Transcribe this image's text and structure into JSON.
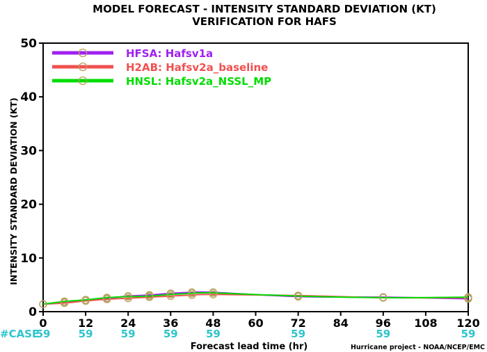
{
  "chart_data": {
    "type": "line",
    "title": "MODEL FORECAST - INTENSITY STANDARD DEVIATION (KT)",
    "subtitle": "VERIFICATION FOR HAFS",
    "xlabel": "Forecast lead time (hr)",
    "ylabel": "INTENSITY STANDARD DEVIATION (KT)",
    "credit": "Hurricane project - NOAA/NCEP/EMC",
    "xlim": [
      0,
      120
    ],
    "ylim": [
      0,
      50
    ],
    "x_ticks": [
      0,
      12,
      24,
      36,
      48,
      60,
      72,
      84,
      96,
      108,
      120
    ],
    "y_ticks": [
      0,
      10,
      20,
      30,
      40,
      50
    ],
    "grid": false,
    "legend_position": "top-left",
    "case_label": "#CASE",
    "case_ticks": [
      0,
      12,
      24,
      36,
      48,
      72,
      96,
      120
    ],
    "case_counts": [
      "59",
      "59",
      "59",
      "59",
      "59",
      "59",
      "59",
      "59"
    ],
    "series": [
      {
        "name": "HFSA: Hafsv1a",
        "color": "#a020f0",
        "x": [
          0,
          6,
          12,
          18,
          24,
          30,
          36,
          42,
          48,
          72,
          96,
          120
        ],
        "values": [
          1.4,
          1.8,
          2.2,
          2.5,
          2.9,
          3.1,
          3.4,
          3.6,
          3.6,
          2.8,
          2.7,
          2.4
        ]
      },
      {
        "name": "H2AB: Hafsv2a_baseline",
        "color": "#f0504f",
        "x": [
          0,
          6,
          12,
          18,
          24,
          30,
          36,
          42,
          48,
          72,
          96,
          120
        ],
        "values": [
          1.4,
          1.6,
          2.0,
          2.3,
          2.5,
          2.7,
          2.9,
          3.1,
          3.2,
          3.0,
          2.6,
          2.6
        ]
      },
      {
        "name": "HNSL: Hafsv2a_NSSL_MP",
        "color": "#00dc00",
        "x": [
          0,
          6,
          12,
          18,
          24,
          30,
          36,
          42,
          48,
          72,
          96,
          120
        ],
        "values": [
          1.4,
          1.9,
          2.2,
          2.6,
          2.8,
          2.9,
          3.2,
          3.4,
          3.5,
          2.9,
          2.6,
          2.7
        ]
      }
    ]
  }
}
